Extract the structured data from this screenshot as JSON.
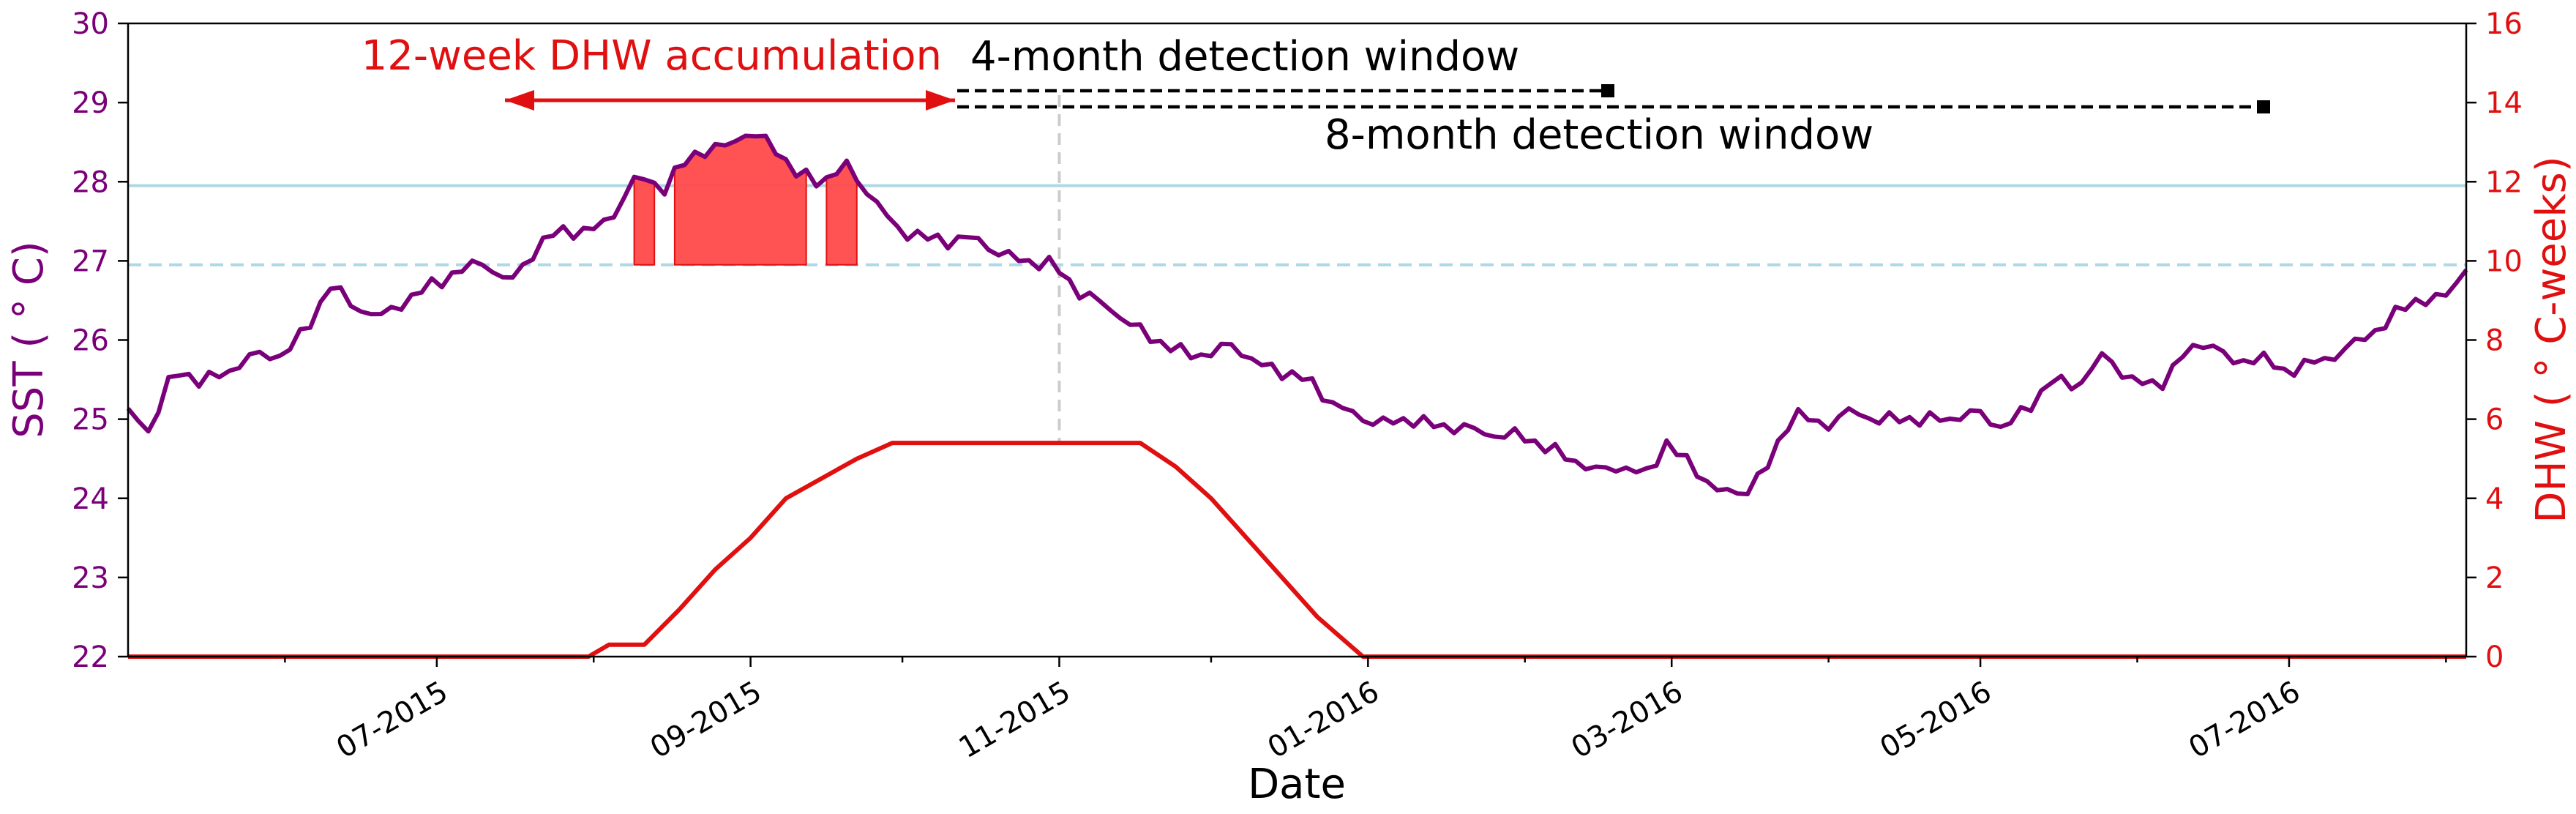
{
  "chart_data": {
    "type": "line",
    "xlabel": "Date",
    "ylabel_left": "SST ( $^\\circ$C)",
    "ylabel_left_display": "SST ( ° C)",
    "ylabel_right_display": "DHW ( ° C-weeks)",
    "x_range": [
      "2015-05-01",
      "2016-08-05"
    ],
    "x_ticks": [
      "07-2015",
      "09-2015",
      "11-2015",
      "01-2016",
      "03-2016",
      "05-2016",
      "07-2016"
    ],
    "y_left": {
      "range": [
        22,
        30
      ],
      "ticks": [
        "22",
        "23",
        "24",
        "25",
        "26",
        "27",
        "28",
        "29",
        "30"
      ]
    },
    "y_right": {
      "range": [
        0,
        16
      ],
      "ticks": [
        "0",
        "2",
        "4",
        "6",
        "8",
        "10",
        "12",
        "14",
        "16"
      ]
    },
    "colors": {
      "sst": "#7a007a",
      "dhw": "#e01010",
      "threshold": "#add8e6",
      "marker": "#000000",
      "vline": "#cccccc"
    },
    "thresholds": [
      {
        "value": 27.95,
        "style": "solid"
      },
      {
        "value": 26.95,
        "style": "dashed"
      }
    ],
    "series": [
      {
        "axis": "left",
        "x": [
          "2015-05-01",
          "2015-05-05",
          "2015-05-10",
          "2015-05-15",
          "2015-05-20",
          "2015-05-25",
          "2015-05-31",
          "2015-06-05",
          "2015-06-10",
          "2015-06-15",
          "2015-06-20",
          "2015-06-25",
          "2015-06-30",
          "2015-07-05",
          "2015-07-10",
          "2015-07-15",
          "2015-07-20",
          "2015-07-25",
          "2015-07-31",
          "2015-08-05",
          "2015-08-10",
          "2015-08-15",
          "2015-08-20",
          "2015-08-25",
          "2015-08-31",
          "2015-09-05",
          "2015-09-10",
          "2015-09-15",
          "2015-09-20",
          "2015-09-25",
          "2015-09-30",
          "2015-10-05",
          "2015-10-10",
          "2015-10-15",
          "2015-10-20",
          "2015-10-25",
          "2015-10-31",
          "2015-11-05",
          "2015-11-10",
          "2015-11-15",
          "2015-11-20",
          "2015-11-25",
          "2015-11-30",
          "2015-12-05",
          "2015-12-10",
          "2015-12-15",
          "2015-12-20",
          "2015-12-25",
          "2015-12-31",
          "2016-01-05",
          "2016-01-10",
          "2016-01-15",
          "2016-01-20",
          "2016-01-25",
          "2016-01-31",
          "2016-02-05",
          "2016-02-10",
          "2016-02-15",
          "2016-02-20",
          "2016-02-25",
          "2016-02-29",
          "2016-03-05",
          "2016-03-10",
          "2016-03-15",
          "2016-03-20",
          "2016-03-25",
          "2016-03-31",
          "2016-04-05",
          "2016-04-10",
          "2016-04-15",
          "2016-04-20",
          "2016-04-25",
          "2016-04-30",
          "2016-05-05",
          "2016-05-10",
          "2016-05-15",
          "2016-05-20",
          "2016-05-25",
          "2016-05-31",
          "2016-06-05",
          "2016-06-10",
          "2016-06-15",
          "2016-06-20",
          "2016-06-25",
          "2016-06-30",
          "2016-07-05",
          "2016-07-10",
          "2016-07-15",
          "2016-07-20",
          "2016-07-25",
          "2016-07-31",
          "2016-08-05"
        ],
        "values": [
          25.1,
          24.85,
          25.6,
          25.5,
          25.55,
          25.8,
          25.8,
          26.1,
          26.7,
          26.4,
          26.3,
          26.5,
          26.7,
          26.85,
          27.0,
          26.7,
          27.1,
          27.4,
          27.35,
          27.6,
          28.1,
          27.9,
          28.35,
          28.4,
          28.6,
          28.5,
          28.1,
          28.0,
          28.2,
          27.8,
          27.4,
          27.3,
          27.25,
          27.3,
          27.1,
          27.0,
          26.95,
          26.6,
          26.45,
          26.2,
          26.0,
          25.85,
          25.8,
          25.95,
          25.7,
          25.6,
          25.5,
          25.2,
          25.0,
          24.95,
          25.0,
          24.9,
          24.9,
          24.8,
          24.8,
          24.65,
          24.5,
          24.35,
          24.4,
          24.3,
          24.7,
          24.4,
          24.1,
          24.05,
          24.4,
          25.1,
          24.9,
          25.1,
          25.0,
          25.0,
          25.0,
          25.0,
          25.1,
          24.9,
          25.1,
          25.5,
          25.4,
          25.8,
          25.5,
          25.4,
          25.8,
          26.0,
          25.7,
          25.8,
          25.6,
          25.7,
          25.8,
          26.0,
          26.2,
          26.5,
          26.5,
          26.9
        ]
      },
      {
        "axis": "right",
        "x": [
          "2015-05-01",
          "2015-07-31",
          "2015-08-04",
          "2015-08-11",
          "2015-08-18",
          "2015-08-25",
          "2015-09-01",
          "2015-09-08",
          "2015-09-15",
          "2015-09-22",
          "2015-09-29",
          "2015-10-06",
          "2015-10-13",
          "2015-10-20",
          "2015-10-27",
          "2015-11-03",
          "2015-11-10",
          "2015-11-17",
          "2015-11-24",
          "2015-12-01",
          "2015-12-08",
          "2015-12-15",
          "2015-12-22",
          "2015-12-31",
          "2016-01-15",
          "2016-08-05"
        ],
        "values": [
          0,
          0,
          0.3,
          0.3,
          1.2,
          2.2,
          3.0,
          4.0,
          4.5,
          5.0,
          5.4,
          5.4,
          5.4,
          5.4,
          5.4,
          5.4,
          5.4,
          5.4,
          4.8,
          4.0,
          3.0,
          2.0,
          1.0,
          0,
          0,
          0
        ]
      }
    ],
    "annotations": [
      {
        "text": "12-week DHW accumulation"
      },
      {
        "text": "4-month detection window"
      },
      {
        "text": "8-month detection window"
      }
    ]
  }
}
